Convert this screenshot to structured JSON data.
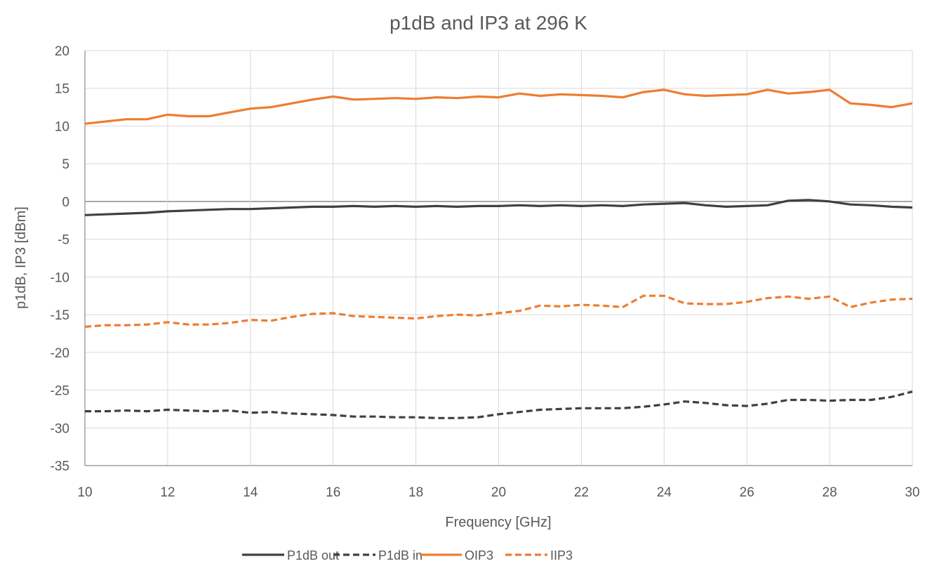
{
  "chart_data": {
    "type": "line",
    "title": "p1dB and IP3 at 296 K",
    "xlabel": "Frequency [GHz]",
    "ylabel": "p1dB, IP3 [dBm]",
    "xlim": [
      10,
      30
    ],
    "ylim": [
      -35,
      20
    ],
    "x_ticks": [
      "10",
      "12",
      "14",
      "16",
      "18",
      "20",
      "22",
      "24",
      "26",
      "28",
      "30"
    ],
    "y_ticks": [
      "20",
      "15",
      "10",
      "5",
      "0",
      "-5",
      "-10",
      "-15",
      "-20",
      "-25",
      "-30",
      "-35"
    ],
    "grid": true,
    "legend_position": "bottom",
    "series": [
      {
        "name": "P1dB out",
        "color": "#404040",
        "dash": "solid",
        "x": [
          10,
          10.5,
          11,
          11.5,
          12,
          12.5,
          13,
          13.5,
          14,
          14.5,
          15,
          15.5,
          16,
          16.5,
          17,
          17.5,
          18,
          18.5,
          19,
          19.5,
          20,
          20.5,
          21,
          21.5,
          22,
          22.5,
          23,
          23.5,
          24,
          24.5,
          25,
          25.5,
          26,
          26.5,
          27,
          27.5,
          28,
          28.5,
          29,
          29.5,
          30
        ],
        "y": [
          -1.8,
          -1.7,
          -1.6,
          -1.5,
          -1.3,
          -1.2,
          -1.1,
          -1.0,
          -1.0,
          -0.9,
          -0.8,
          -0.7,
          -0.7,
          -0.6,
          -0.7,
          -0.6,
          -0.7,
          -0.6,
          -0.7,
          -0.6,
          -0.6,
          -0.5,
          -0.6,
          -0.5,
          -0.6,
          -0.5,
          -0.6,
          -0.4,
          -0.3,
          -0.2,
          -0.5,
          -0.7,
          -0.6,
          -0.5,
          0.1,
          0.2,
          0.0,
          -0.4,
          -0.5,
          -0.7,
          -0.8
        ]
      },
      {
        "name": "P1dB in",
        "color": "#404040",
        "dash": "dashed",
        "x": [
          10,
          10.5,
          11,
          11.5,
          12,
          12.5,
          13,
          13.5,
          14,
          14.5,
          15,
          15.5,
          16,
          16.5,
          17,
          17.5,
          18,
          18.5,
          19,
          19.5,
          20,
          20.5,
          21,
          21.5,
          22,
          22.5,
          23,
          23.5,
          24,
          24.5,
          25,
          25.5,
          26,
          26.5,
          27,
          27.5,
          28,
          28.5,
          29,
          29.5,
          30
        ],
        "y": [
          -27.8,
          -27.8,
          -27.7,
          -27.8,
          -27.6,
          -27.7,
          -27.8,
          -27.7,
          -28.0,
          -27.9,
          -28.1,
          -28.2,
          -28.3,
          -28.5,
          -28.5,
          -28.6,
          -28.6,
          -28.7,
          -28.7,
          -28.6,
          -28.2,
          -27.9,
          -27.6,
          -27.5,
          -27.4,
          -27.4,
          -27.4,
          -27.2,
          -26.9,
          -26.5,
          -26.7,
          -27.0,
          -27.1,
          -26.8,
          -26.3,
          -26.3,
          -26.4,
          -26.3,
          -26.3,
          -25.9,
          -25.2
        ]
      },
      {
        "name": "OIP3",
        "color": "#ED7D31",
        "dash": "solid",
        "x": [
          10,
          10.5,
          11,
          11.5,
          12,
          12.5,
          13,
          13.5,
          14,
          14.5,
          15,
          15.5,
          16,
          16.5,
          17,
          17.5,
          18,
          18.5,
          19,
          19.5,
          20,
          20.5,
          21,
          21.5,
          22,
          22.5,
          23,
          23.5,
          24,
          24.5,
          25,
          25.5,
          26,
          26.5,
          27,
          27.5,
          28,
          28.5,
          29,
          29.5,
          30
        ],
        "y": [
          10.3,
          10.6,
          10.9,
          10.9,
          11.5,
          11.3,
          11.3,
          11.8,
          12.3,
          12.5,
          13.0,
          13.5,
          13.9,
          13.5,
          13.6,
          13.7,
          13.6,
          13.8,
          13.7,
          13.9,
          13.8,
          14.3,
          14.0,
          14.2,
          14.1,
          14.0,
          13.8,
          14.5,
          14.8,
          14.2,
          14.0,
          14.1,
          14.2,
          14.8,
          14.3,
          14.5,
          14.8,
          13.0,
          12.8,
          12.5,
          13.0
        ]
      },
      {
        "name": "IIP3",
        "color": "#ED7D31",
        "dash": "dashed",
        "x": [
          10,
          10.5,
          11,
          11.5,
          12,
          12.5,
          13,
          13.5,
          14,
          14.5,
          15,
          15.5,
          16,
          16.5,
          17,
          17.5,
          18,
          18.5,
          19,
          19.5,
          20,
          20.5,
          21,
          21.5,
          22,
          22.5,
          23,
          23.5,
          24,
          24.5,
          25,
          25.5,
          26,
          26.5,
          27,
          27.5,
          28,
          28.5,
          29,
          29.5,
          30
        ],
        "y": [
          -16.6,
          -16.4,
          -16.4,
          -16.3,
          -16.0,
          -16.3,
          -16.3,
          -16.1,
          -15.7,
          -15.8,
          -15.3,
          -14.9,
          -14.8,
          -15.2,
          -15.3,
          -15.4,
          -15.5,
          -15.2,
          -15.0,
          -15.1,
          -14.8,
          -14.5,
          -13.8,
          -13.9,
          -13.7,
          -13.8,
          -14.0,
          -12.5,
          -12.5,
          -13.5,
          -13.6,
          -13.6,
          -13.3,
          -12.8,
          -12.6,
          -12.9,
          -12.6,
          -14.0,
          -13.4,
          -13.0,
          -12.9
        ]
      }
    ]
  }
}
